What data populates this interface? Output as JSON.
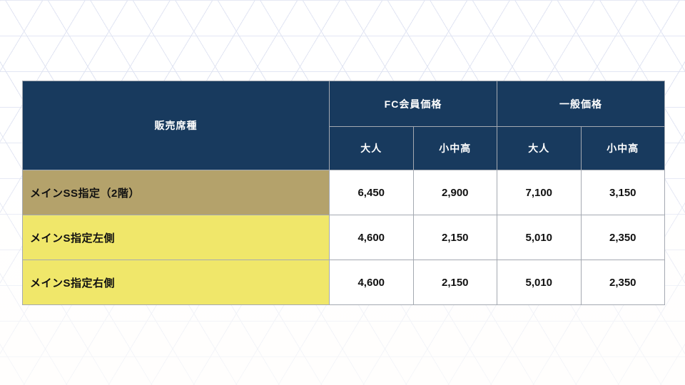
{
  "slide": {
    "background": {
      "pattern": "triangular-grid-lines",
      "pattern_line_color": "#dfe3f2",
      "base_color": "#ffffff"
    }
  },
  "table": {
    "colors": {
      "header_bg": "#183a5e",
      "header_text": "#ffffff",
      "row_highlight_gold": "#b4a26b",
      "row_highlight_yellow": "#f0e76a",
      "body_text": "#111111",
      "grid_line": "#a4a9b1"
    },
    "header": {
      "seat_type_label": "販売席種",
      "groups": [
        {
          "label": "FC会員価格",
          "subcolumns": [
            "大人",
            "小中高"
          ]
        },
        {
          "label": "一般価格",
          "subcolumns": [
            "大人",
            "小中高"
          ]
        }
      ]
    },
    "rows": [
      {
        "label": "メインSS指定（2階）",
        "highlight": "gold",
        "values": [
          "6,450",
          "2,900",
          "7,100",
          "3,150"
        ]
      },
      {
        "label": "メインS指定左側",
        "highlight": "yellow",
        "values": [
          "4,600",
          "2,150",
          "5,010",
          "2,350"
        ]
      },
      {
        "label": "メインS指定右側",
        "highlight": "yellow",
        "values": [
          "4,600",
          "2,150",
          "5,010",
          "2,350"
        ]
      }
    ]
  },
  "chart_data": {
    "type": "table",
    "columns": [
      "販売席種",
      "FC会員価格 大人",
      "FC会員価格 小中高",
      "一般価格 大人",
      "一般価格 小中高"
    ],
    "rows": [
      [
        "メインSS指定（2階）",
        6450,
        2900,
        7100,
        3150
      ],
      [
        "メインS指定左側",
        4600,
        2150,
        5010,
        2350
      ],
      [
        "メインS指定右側",
        4600,
        2150,
        5010,
        2350
      ]
    ]
  }
}
